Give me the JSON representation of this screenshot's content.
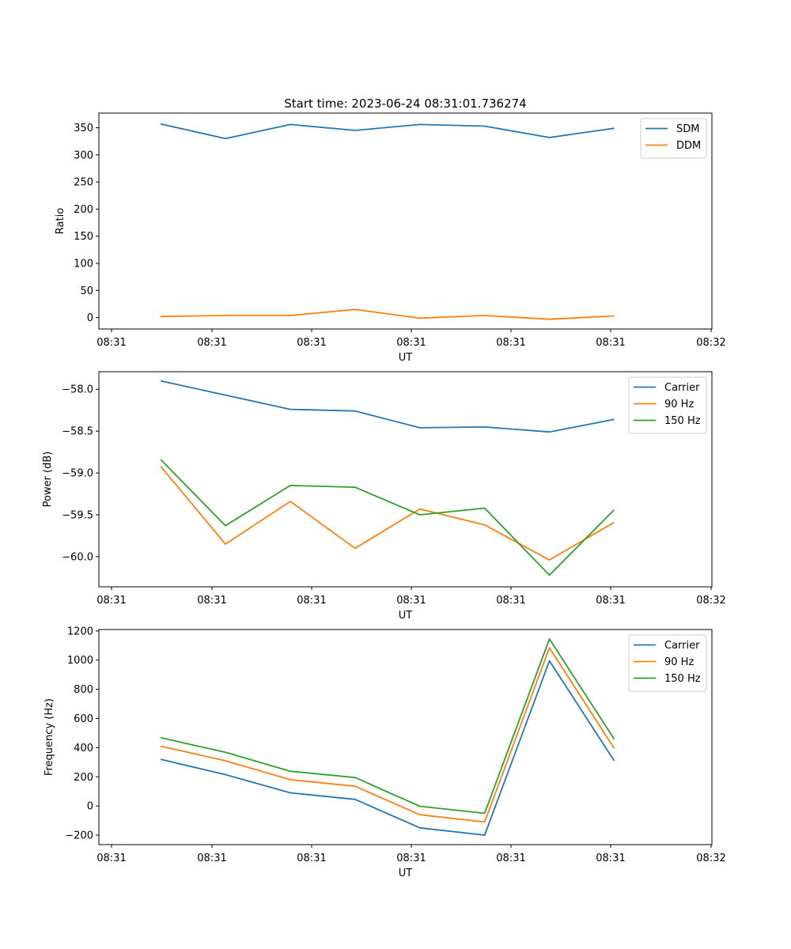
{
  "figure": {
    "title": "Start time: 2023-06-24 08:31:01.736274"
  },
  "chart_data": [
    {
      "type": "line",
      "title": "Start time: 2023-06-24 08:31:01.736274",
      "xlabel": "UT",
      "ylabel": "Ratio",
      "x_tick_labels": [
        "08:31",
        "08:31",
        "08:31",
        "08:31",
        "08:31",
        "08:31",
        "08:31",
        "08:32"
      ],
      "x_index": [
        0.5,
        1.15,
        1.8,
        2.45,
        3.1,
        3.75,
        4.4,
        5.05
      ],
      "xlim": [
        -0.12,
        6.03
      ],
      "yticks": [
        0,
        50,
        100,
        150,
        200,
        250,
        300,
        350
      ],
      "ylim": [
        -21,
        377
      ],
      "legend": "top-right",
      "series": [
        {
          "name": "SDM",
          "color": "#1f77b4",
          "values": [
            357,
            330,
            356,
            345,
            356,
            353,
            332,
            349
          ]
        },
        {
          "name": "DDM",
          "color": "#ff7f0e",
          "values": [
            2,
            4,
            4,
            15,
            -1,
            4,
            -3,
            3
          ]
        }
      ]
    },
    {
      "type": "line",
      "title": "",
      "xlabel": "UT",
      "ylabel": "Power (dB)",
      "x_tick_labels": [
        "08:31",
        "08:31",
        "08:31",
        "08:31",
        "08:31",
        "08:31",
        "08:31",
        "08:32"
      ],
      "x_index": [
        0.5,
        1.15,
        1.8,
        2.45,
        3.1,
        3.75,
        4.4,
        5.05
      ],
      "xlim": [
        -0.12,
        6.03
      ],
      "yticks": [
        -60.0,
        -59.5,
        -59.0,
        -58.5,
        -58.0
      ],
      "ytick_labels": [
        "−60.0",
        "−59.5",
        "−59.0",
        "−58.5",
        "−58.0"
      ],
      "ylim": [
        -60.36,
        -57.79
      ],
      "legend": "top-right",
      "series": [
        {
          "name": "Carrier",
          "color": "#1f77b4",
          "values": [
            -57.9,
            -58.07,
            -58.24,
            -58.26,
            -58.46,
            -58.45,
            -58.51,
            -58.36
          ]
        },
        {
          "name": "90 Hz",
          "color": "#ff7f0e",
          "values": [
            -58.92,
            -59.85,
            -59.34,
            -59.9,
            -59.43,
            -59.62,
            -60.04,
            -59.59
          ]
        },
        {
          "name": "150 Hz",
          "color": "#2ca02c",
          "values": [
            -58.84,
            -59.63,
            -59.15,
            -59.17,
            -59.5,
            -59.42,
            -60.22,
            -59.44
          ]
        }
      ]
    },
    {
      "type": "line",
      "title": "",
      "xlabel": "UT",
      "ylabel": "Frequency (Hz)",
      "x_tick_labels": [
        "08:31",
        "08:31",
        "08:31",
        "08:31",
        "08:31",
        "08:31",
        "08:31",
        "08:32"
      ],
      "x_index": [
        0.5,
        1.15,
        1.8,
        2.45,
        3.1,
        3.75,
        4.4,
        5.05
      ],
      "xlim": [
        -0.12,
        6.03
      ],
      "yticks": [
        -200,
        0,
        200,
        400,
        600,
        800,
        1000,
        1200
      ],
      "ytick_labels": [
        "−200",
        "0",
        "200",
        "400",
        "600",
        "800",
        "1000",
        "1200"
      ],
      "ylim": [
        -265,
        1210
      ],
      "legend": "top-right",
      "series": [
        {
          "name": "Carrier",
          "color": "#1f77b4",
          "values": [
            320,
            215,
            90,
            45,
            -150,
            -200,
            995,
            310
          ]
        },
        {
          "name": "90 Hz",
          "color": "#ff7f0e",
          "values": [
            410,
            310,
            180,
            135,
            -60,
            -110,
            1085,
            395
          ]
        },
        {
          "name": "150 Hz",
          "color": "#2ca02c",
          "values": [
            468,
            368,
            238,
            195,
            -2,
            -50,
            1145,
            458
          ]
        }
      ]
    }
  ]
}
